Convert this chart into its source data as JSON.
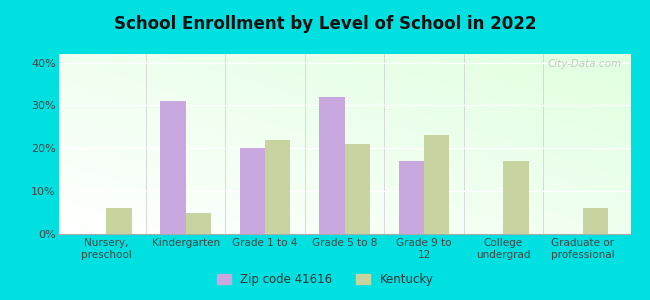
{
  "title": "School Enrollment by Level of School in 2022",
  "categories": [
    "Nursery,\npreschool",
    "Kindergarten",
    "Grade 1 to 4",
    "Grade 5 to 8",
    "Grade 9 to\n12",
    "College\nundergrad",
    "Graduate or\nprofessional"
  ],
  "zip_values": [
    0,
    31,
    20,
    32,
    17,
    0,
    0
  ],
  "ky_values": [
    6,
    5,
    22,
    21,
    23,
    17,
    6
  ],
  "zip_color": "#c9a8e0",
  "ky_color": "#c8d4a0",
  "background_outer": "#00e0e0",
  "ylim": [
    0,
    42
  ],
  "yticks": [
    0,
    10,
    20,
    30,
    40
  ],
  "bar_width": 0.32,
  "legend_zip_label": "Zip code 41616",
  "legend_ky_label": "Kentucky",
  "watermark": "City-Data.com",
  "title_fontsize": 12,
  "tick_fontsize": 7.5,
  "ytick_fontsize": 8
}
